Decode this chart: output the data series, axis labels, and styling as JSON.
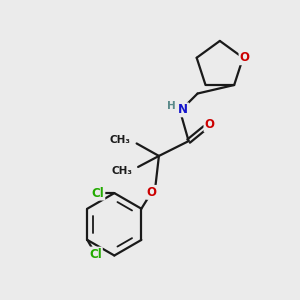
{
  "bg_color": "#ebebeb",
  "bond_color": "#1a1a1a",
  "bond_width": 1.6,
  "atom_colors": {
    "O": "#cc0000",
    "N": "#1414cc",
    "Cl": "#22aa00",
    "C": "#1a1a1a",
    "H": "#5a8a8a"
  },
  "font_size": 8.5,
  "fig_size": [
    3.0,
    3.0
  ],
  "dpi": 100
}
